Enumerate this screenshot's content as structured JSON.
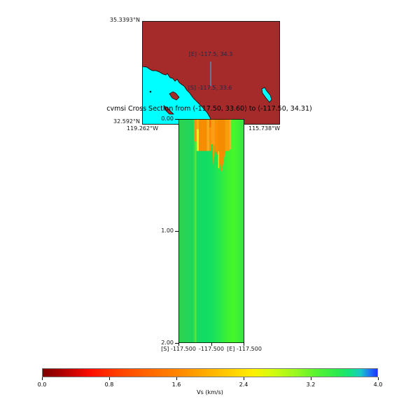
{
  "figure": {
    "title": "cvmsi Cross Section from (-117.50, 33.60) to (-117.50, 34.31)"
  },
  "map": {
    "labels": {
      "lat_top": "35.3393°N",
      "lat_bottom": "32.592°N",
      "lon_left": "119.262°W",
      "lon_right": "115.738°W"
    },
    "annotations": {
      "end": "[E] -117.5, 34.3",
      "start": "[S] -117.5, 33.6"
    },
    "extent": {
      "lat": [
        32.592,
        35.3393
      ],
      "lon": [
        -119.262,
        -115.738
      ]
    },
    "colors": {
      "land": "#a52a2a",
      "ocean": "#00ffff",
      "coast": "#000000",
      "frame": "#1a1a1a",
      "section_line": "#5c7ea8"
    }
  },
  "cross_section": {
    "y_ticks": [
      "0.00",
      "1.00",
      "2.00"
    ],
    "x_tick_labels": [
      "[S] -117.500",
      "-117.500",
      "[E] -117.500"
    ]
  },
  "colorbar": {
    "label": "Vs (km/s)",
    "ticks": [
      "0.0",
      "0.8",
      "1.6",
      "2.4",
      "3.2",
      "4.0"
    ],
    "min": 0.0,
    "max": 4.0,
    "stops": [
      [
        0.0,
        "#7f0000"
      ],
      [
        0.05,
        "#a50000"
      ],
      [
        0.14,
        "#fb0b00"
      ],
      [
        0.22,
        "#ff3c00"
      ],
      [
        0.3,
        "#ff6000"
      ],
      [
        0.4,
        "#ff8500"
      ],
      [
        0.5,
        "#ffb200"
      ],
      [
        0.57,
        "#ffd300"
      ],
      [
        0.63,
        "#fdf004"
      ],
      [
        0.68,
        "#d8fb0c"
      ],
      [
        0.75,
        "#9ff81e"
      ],
      [
        0.82,
        "#55f233"
      ],
      [
        0.88,
        "#2cea4e"
      ],
      [
        0.92,
        "#13e381"
      ],
      [
        0.95,
        "#17c9c4"
      ],
      [
        0.975,
        "#1e7df2"
      ],
      [
        1.0,
        "#1b33fd"
      ]
    ]
  },
  "chart_data": {
    "type": "heatmap",
    "title": "cvmsi Cross Section from (-117.50, 33.60) to (-117.50, 34.31)",
    "model": "cvmsi",
    "quantity": "Vs (km/s)",
    "value_range": [
      0.0,
      4.0
    ],
    "colorbar_ticks": [
      0.0,
      0.8,
      1.6,
      2.4,
      3.2,
      4.0
    ],
    "section_start": {
      "label": "[S]",
      "lon": -117.5,
      "lat": 33.6
    },
    "section_end": {
      "label": "[E]",
      "lon": -117.5,
      "lat": 34.31
    },
    "depth_range": [
      0.0,
      2.0
    ],
    "depth_ticks": [
      0.0,
      1.0,
      2.0
    ],
    "map_extent": {
      "lat": [
        32.592,
        35.3393
      ],
      "lon": [
        -119.262,
        -115.738
      ]
    },
    "summary": {
      "background": "Vs ~2.9-3.3 km/s (green) over nearly the entire 0-2 km section",
      "shallow_basin": "low-velocity zone Vs ~1.0-1.7 km/s (orange/yellow) between ~24% and ~80% of the profile, from surface to ~0.29 km depth",
      "plumes": "narrow low-velocity plumes extend to ~0.41 km and ~0.48 km depth near the middle of the profile"
    },
    "render": {
      "background_stops": [
        [
          0.0,
          "#2ed04e"
        ],
        [
          0.12,
          "#26d457"
        ],
        [
          0.22,
          "#1dd75d"
        ],
        [
          0.255,
          "#52e23a"
        ],
        [
          0.265,
          "#7dea20"
        ],
        [
          0.275,
          "#18da61"
        ],
        [
          0.4,
          "#11dd65"
        ],
        [
          0.52,
          "#17e05d"
        ],
        [
          0.64,
          "#2ae94a"
        ],
        [
          0.75,
          "#3df233"
        ],
        [
          0.84,
          "#47f729"
        ],
        [
          0.92,
          "#3bef36"
        ],
        [
          1.0,
          "#34e441"
        ]
      ],
      "stripes": [
        [
          0.24,
          0.275,
          0.0,
          0.2,
          "#ff8e12"
        ],
        [
          0.275,
          0.31,
          0.0,
          0.09,
          "#fcae06"
        ],
        [
          0.275,
          0.31,
          0.09,
          0.285,
          "#f5ee10"
        ],
        [
          0.31,
          0.43,
          0.0,
          0.285,
          "#f68c00"
        ],
        [
          0.43,
          0.47,
          0.0,
          0.285,
          "#fba81c"
        ],
        [
          0.47,
          0.495,
          0.0,
          0.075,
          "#ff6c00"
        ],
        [
          0.47,
          0.495,
          0.075,
          0.285,
          "#f89202"
        ],
        [
          0.495,
          0.555,
          0.0,
          0.225,
          "#fb9e16"
        ],
        [
          0.555,
          0.6,
          0.0,
          0.285,
          "#f79100"
        ],
        [
          0.6,
          0.71,
          0.0,
          0.285,
          "#f58b00"
        ],
        [
          0.71,
          0.775,
          0.0,
          0.285,
          "#fa9c0c"
        ],
        [
          0.775,
          0.8,
          0.0,
          0.27,
          "#ffae2e"
        ]
      ],
      "plumes": [
        {
          "color": "#f89408",
          "points": [
            [
              0.515,
              0.225
            ],
            [
              0.553,
              0.225
            ],
            [
              0.545,
              0.33
            ],
            [
              0.528,
              0.41
            ],
            [
              0.52,
              0.3
            ]
          ]
        },
        {
          "color": "#f58c00",
          "points": [
            [
              0.555,
              0.285
            ],
            [
              0.715,
              0.285
            ],
            [
              0.7,
              0.33
            ],
            [
              0.655,
              0.475
            ],
            [
              0.61,
              0.345
            ],
            [
              0.58,
              0.305
            ]
          ]
        }
      ],
      "filaments": [
        [
          0.603,
          0.617,
          0.29,
          0.44,
          "#ffe414"
        ]
      ]
    }
  }
}
